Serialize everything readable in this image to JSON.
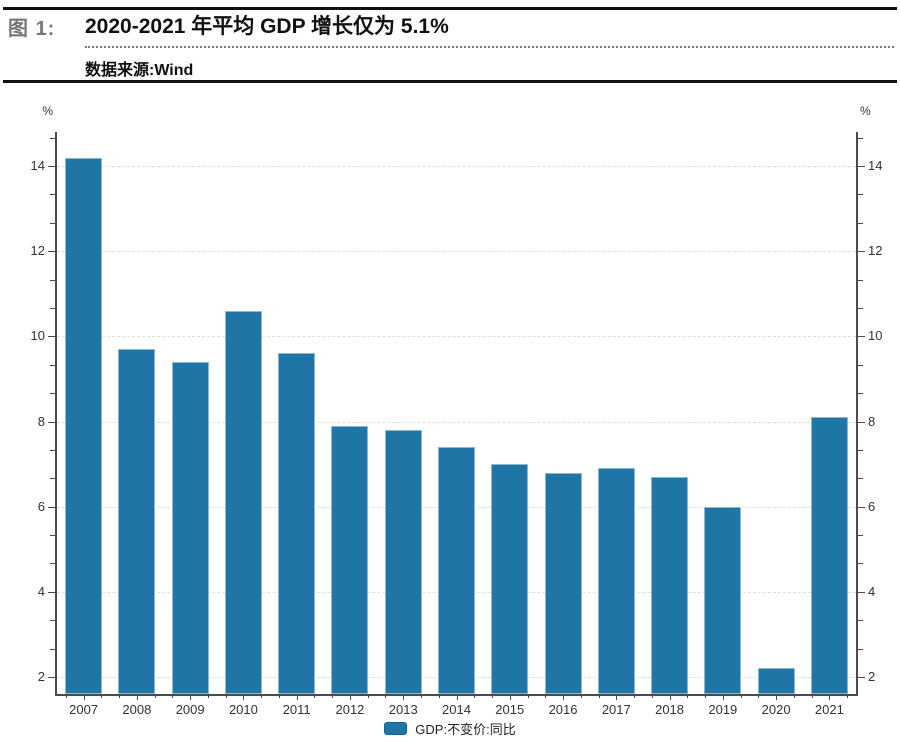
{
  "header": {
    "figure_label": "图 1:",
    "title": "2020-2021 年平均 GDP 增长仅为 5.1%",
    "source": "数据来源:Wind"
  },
  "chart_data": {
    "type": "bar",
    "categories": [
      "2007",
      "2008",
      "2009",
      "2010",
      "2011",
      "2012",
      "2013",
      "2014",
      "2015",
      "2016",
      "2017",
      "2018",
      "2019",
      "2020",
      "2021"
    ],
    "series": [
      {
        "name": "GDP:不变价:同比",
        "values": [
          14.2,
          9.7,
          9.4,
          10.6,
          9.6,
          7.9,
          7.8,
          7.4,
          7.0,
          6.8,
          6.9,
          6.7,
          6.0,
          2.2,
          8.1
        ]
      }
    ],
    "y_unit": "%",
    "ylim": [
      1.6,
      14.8
    ],
    "yticks": [
      2,
      4,
      6,
      8,
      10,
      12,
      14
    ],
    "minor_tick_step": 0.6667,
    "grid": "horizontal-dashed",
    "legend_position": "bottom-center"
  },
  "colors": {
    "bar": "#1F75A6",
    "bar_border": "#8AB9D2",
    "legend_border": "#15608E",
    "axis": "#4A4A4A",
    "grid": "#DFDFDF",
    "tick_label": "#333333",
    "figure_label": "#767676",
    "title": "#111111",
    "rule": "#111111"
  }
}
